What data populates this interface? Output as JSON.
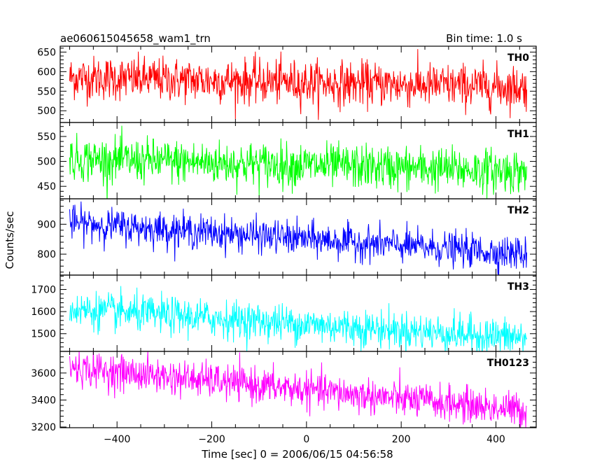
{
  "header": {
    "title": "ae060615045658_wam1_trn",
    "bin_time": "Bin time: 1.0 s"
  },
  "chart_data": {
    "type": "line",
    "title": "ae060615045658_wam1_trn",
    "subtitle": "Bin time: 1.0 s",
    "xlabel": "Time [sec] 0 = 2006/06/15 04:56:58",
    "ylabel": "Counts/sec",
    "xlim": [
      -520,
      485
    ],
    "x_ticks": [
      -400,
      -200,
      0,
      200,
      400
    ],
    "x_tick_labels": [
      "−400",
      "−200",
      "0",
      "200",
      "400"
    ],
    "x_range": [
      -500,
      465
    ],
    "grid": false,
    "legend": "none",
    "panels": [
      {
        "name": "TH0",
        "color": "#ff0000",
        "ylim": [
          470,
          665
        ],
        "y_ticks": [
          500,
          550,
          600,
          650
        ],
        "trend_start": 585,
        "trend_end": 560,
        "noise_sigma": 28
      },
      {
        "name": "TH1",
        "color": "#00ff00",
        "ylim": [
          425,
          578
        ],
        "y_ticks": [
          450,
          500,
          550
        ],
        "trend_start": 505,
        "trend_end": 480,
        "noise_sigma": 22
      },
      {
        "name": "TH2",
        "color": "#0000ff",
        "ylim": [
          730,
          985
        ],
        "y_ticks": [
          800,
          900
        ],
        "trend_start": 905,
        "trend_end": 800,
        "noise_sigma": 28
      },
      {
        "name": "TH3",
        "color": "#00ffff",
        "ylim": [
          1420,
          1765
        ],
        "y_ticks": [
          1500,
          1600,
          1700
        ],
        "trend_start": 1610,
        "trend_end": 1480,
        "noise_sigma": 42
      },
      {
        "name": "TH0123",
        "color": "#ff00ff",
        "ylim": [
          3195,
          3760
        ],
        "y_ticks": [
          3200,
          3400,
          3600
        ],
        "trend_start": 3640,
        "trend_end": 3320,
        "noise_sigma": 65
      }
    ]
  }
}
